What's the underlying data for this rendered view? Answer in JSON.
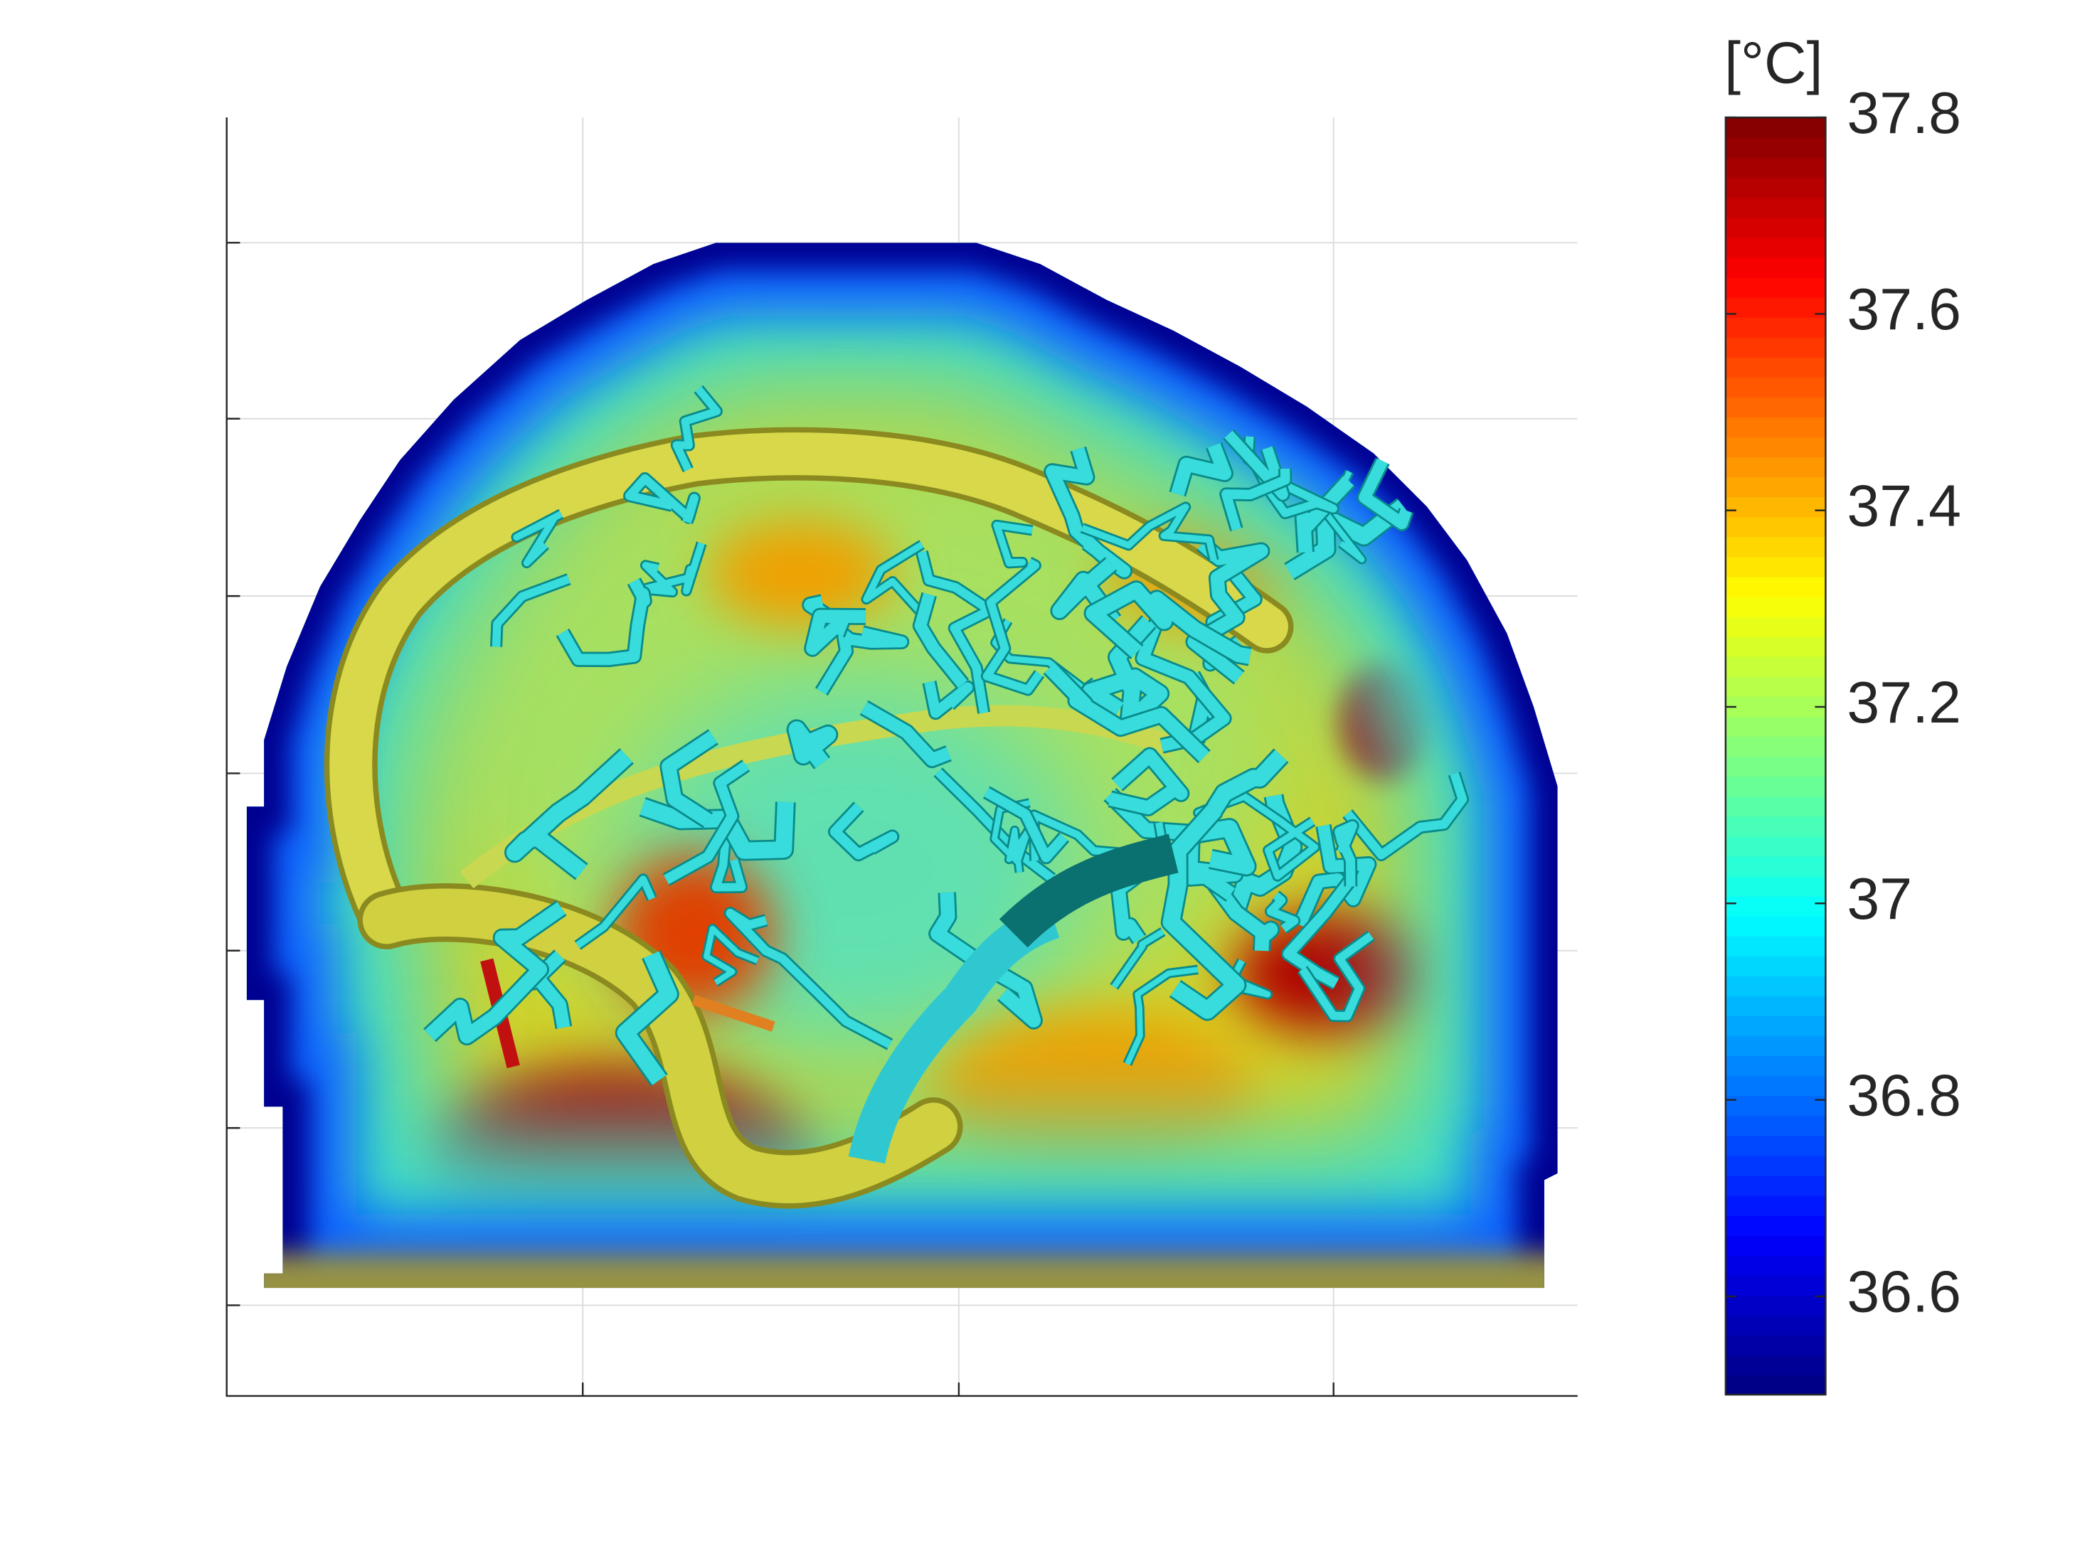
{
  "chart_data": {
    "type": "heatmap",
    "colorbar": {
      "label": "[°C]",
      "lim": [
        36.5,
        37.8
      ],
      "ticks": [
        36.6,
        36.8,
        37,
        37.2,
        37.4,
        37.6,
        37.8
      ],
      "colormap": "jet"
    }
  }
}
